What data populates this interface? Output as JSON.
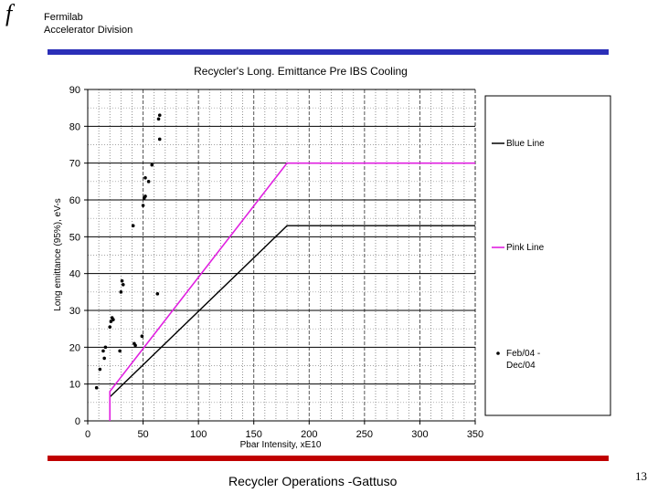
{
  "header": {
    "logo_glyph": "f",
    "org_line1": "Fermilab",
    "org_line2": "Accelerator Division"
  },
  "footer": {
    "text": "Recycler Operations -Gattuso",
    "page_number": "13"
  },
  "colors": {
    "top_bar": "#2b2fb8",
    "bottom_bar": "#c00000",
    "blue_line": "#000000",
    "pink_line": "#e020e0",
    "points": "#000000"
  },
  "chart_data": {
    "type": "scatter",
    "title": "Recycler's Long. Emittance Pre IBS Cooling",
    "xlabel": "Pbar Intensity, xE10",
    "ylabel": "Long emittance (95%), eV-s",
    "xlim": [
      0,
      350
    ],
    "ylim": [
      0,
      90
    ],
    "xticks": [
      0,
      50,
      100,
      150,
      200,
      250,
      300,
      350
    ],
    "yticks": [
      0,
      10,
      20,
      30,
      40,
      50,
      60,
      70,
      80,
      90
    ],
    "grid": true,
    "legend_placement": "right",
    "series": [
      {
        "name": "Blue Line",
        "kind": "line",
        "points": [
          [
            20,
            6
          ],
          [
            20,
            6.5
          ],
          [
            180,
            53
          ],
          [
            350,
            53
          ]
        ]
      },
      {
        "name": "Pink Line",
        "kind": "line",
        "points": [
          [
            20,
            0
          ],
          [
            20,
            8
          ],
          [
            180,
            70
          ],
          [
            350,
            70
          ]
        ]
      },
      {
        "name": "Feb/04 - Dec/04",
        "kind": "scatter",
        "points": [
          [
            8,
            9
          ],
          [
            11,
            14
          ],
          [
            14,
            19
          ],
          [
            15,
            17
          ],
          [
            16,
            20
          ],
          [
            20,
            25.5
          ],
          [
            21,
            27
          ],
          [
            22,
            28
          ],
          [
            23,
            27.5
          ],
          [
            29,
            19
          ],
          [
            30,
            35
          ],
          [
            31,
            38
          ],
          [
            32,
            37
          ],
          [
            41,
            53
          ],
          [
            42,
            21
          ],
          [
            43,
            20.5
          ],
          [
            49,
            23
          ],
          [
            50,
            58.5
          ],
          [
            51,
            60.5
          ],
          [
            52,
            61
          ],
          [
            52,
            66
          ],
          [
            55,
            65
          ],
          [
            58,
            69.5
          ],
          [
            63,
            34.5
          ],
          [
            64,
            82
          ],
          [
            65,
            83
          ],
          [
            65,
            76.5
          ]
        ]
      }
    ]
  }
}
